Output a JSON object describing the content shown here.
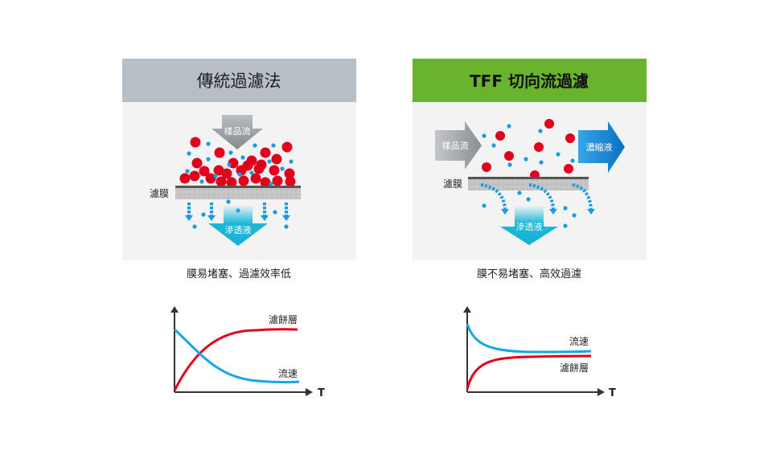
{
  "left_panel": {
    "title": "傳統過濾法",
    "header_color": "#b7bec6",
    "sample_flow": "樣品流",
    "membrane": "濾膜",
    "permeate": "滲透液",
    "caption": "膜易堵塞、過濾效率低",
    "graph": {
      "cake_label": "濾餅層",
      "flow_label": "流速",
      "x_axis": "T"
    }
  },
  "right_panel": {
    "title": "TFF 切向流過濾",
    "header_color": "#6ab42d",
    "sample_flow": "樣品流",
    "retentate": "濃縮液",
    "membrane": "濾膜",
    "permeate": "滲透液",
    "caption": "膜不易堵塞、高效過濾",
    "graph": {
      "flow_label": "流速",
      "cake_label": "濾餅層",
      "x_axis": "T"
    }
  },
  "colors": {
    "particle_large": "#e0001b",
    "particle_small": "#1a9de0",
    "flow_curve": "#14a6e6",
    "cake_curve": "#e3001b"
  }
}
